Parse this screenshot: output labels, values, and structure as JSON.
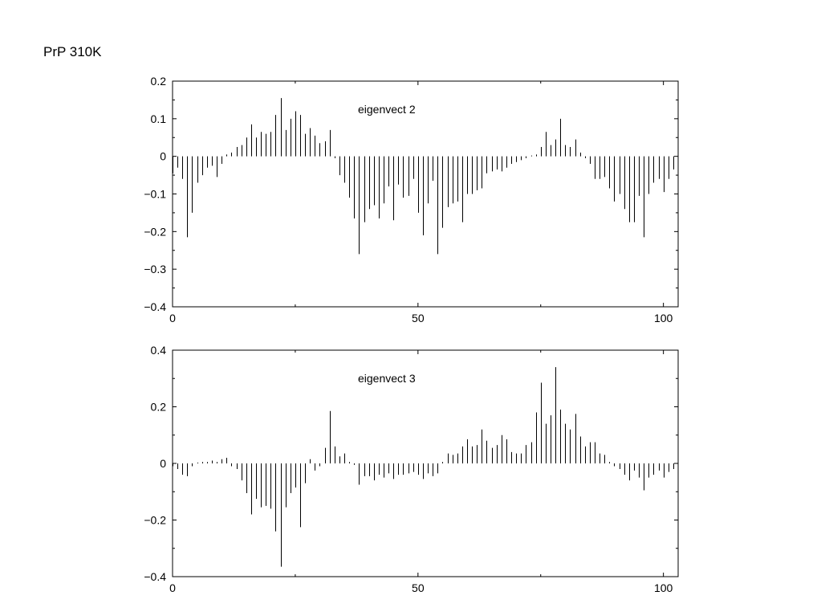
{
  "page": {
    "title": "PrP 310K"
  },
  "chart_data": [
    {
      "type": "bar",
      "style": "impulse",
      "series_label": "eigenvect 2",
      "xlim": [
        0,
        103
      ],
      "ylim": [
        -0.4,
        0.2
      ],
      "xticks": [
        0,
        50,
        100
      ],
      "yticks": [
        -0.4,
        -0.3,
        -0.2,
        -0.1,
        0,
        0.1,
        0.2
      ],
      "xtick_labels": [
        "0",
        "50",
        "100"
      ],
      "ytick_labels": [
        "−0.4",
        "−0.3",
        "−0.2",
        "−0.1",
        "0",
        "0.1",
        "0.2"
      ],
      "x": [
        0,
        1,
        2,
        3,
        4,
        5,
        6,
        7,
        8,
        9,
        10,
        11,
        12,
        13,
        14,
        15,
        16,
        17,
        18,
        19,
        20,
        21,
        22,
        23,
        24,
        25,
        26,
        27,
        28,
        29,
        30,
        31,
        32,
        33,
        34,
        35,
        36,
        37,
        38,
        39,
        40,
        41,
        42,
        43,
        44,
        45,
        46,
        47,
        48,
        49,
        50,
        51,
        52,
        53,
        54,
        55,
        56,
        57,
        58,
        59,
        60,
        61,
        62,
        63,
        64,
        65,
        66,
        67,
        68,
        69,
        70,
        71,
        72,
        73,
        74,
        75,
        76,
        77,
        78,
        79,
        80,
        81,
        82,
        83,
        84,
        85,
        86,
        87,
        88,
        89,
        90,
        91,
        92,
        93,
        94,
        95,
        96,
        97,
        98,
        99,
        100,
        101,
        102
      ],
      "values": [
        -0.045,
        -0.03,
        -0.06,
        -0.215,
        -0.15,
        -0.07,
        -0.05,
        -0.03,
        -0.025,
        -0.055,
        -0.02,
        0.005,
        0.01,
        0.025,
        0.03,
        0.05,
        0.085,
        0.05,
        0.065,
        0.06,
        0.065,
        0.11,
        0.155,
        0.07,
        0.1,
        0.12,
        0.11,
        0.06,
        0.075,
        0.055,
        0.035,
        0.04,
        0.07,
        -0.005,
        -0.05,
        -0.07,
        -0.11,
        -0.165,
        -0.26,
        -0.175,
        -0.14,
        -0.13,
        -0.165,
        -0.125,
        -0.08,
        -0.17,
        -0.075,
        -0.11,
        -0.105,
        -0.06,
        -0.15,
        -0.21,
        -0.125,
        -0.065,
        -0.26,
        -0.19,
        -0.135,
        -0.125,
        -0.12,
        -0.175,
        -0.1,
        -0.1,
        -0.09,
        -0.085,
        -0.045,
        -0.04,
        -0.035,
        -0.04,
        -0.03,
        -0.02,
        -0.015,
        -0.01,
        -0.005,
        0.0,
        0.005,
        0.025,
        0.065,
        0.03,
        0.045,
        0.1,
        0.03,
        0.025,
        0.045,
        0.01,
        -0.005,
        -0.02,
        -0.06,
        -0.06,
        -0.055,
        -0.085,
        -0.12,
        -0.1,
        -0.14,
        -0.175,
        -0.175,
        -0.105,
        -0.215,
        -0.1,
        -0.07,
        -0.06,
        -0.095,
        -0.06,
        -0.035
      ]
    },
    {
      "type": "bar",
      "style": "impulse",
      "series_label": "eigenvect 3",
      "xlim": [
        0,
        103
      ],
      "ylim": [
        -0.4,
        0.4
      ],
      "xticks": [
        0,
        50,
        100
      ],
      "yticks": [
        -0.4,
        -0.2,
        0,
        0.2,
        0.4
      ],
      "xtick_labels": [
        "0",
        "50",
        "100"
      ],
      "ytick_labels": [
        "−0.4",
        "−0.2",
        "0",
        "0.2",
        "0.4"
      ],
      "x": [
        0,
        1,
        2,
        3,
        4,
        5,
        6,
        7,
        8,
        9,
        10,
        11,
        12,
        13,
        14,
        15,
        16,
        17,
        18,
        19,
        20,
        21,
        22,
        23,
        24,
        25,
        26,
        27,
        28,
        29,
        30,
        31,
        32,
        33,
        34,
        35,
        36,
        37,
        38,
        39,
        40,
        41,
        42,
        43,
        44,
        45,
        46,
        47,
        48,
        49,
        50,
        51,
        52,
        53,
        54,
        55,
        56,
        57,
        58,
        59,
        60,
        61,
        62,
        63,
        64,
        65,
        66,
        67,
        68,
        69,
        70,
        71,
        72,
        73,
        74,
        75,
        76,
        77,
        78,
        79,
        80,
        81,
        82,
        83,
        84,
        85,
        86,
        87,
        88,
        89,
        90,
        91,
        92,
        93,
        94,
        95,
        96,
        97,
        98,
        99,
        100,
        101,
        102
      ],
      "values": [
        -0.01,
        -0.02,
        -0.04,
        -0.045,
        -0.01,
        0.0,
        0.005,
        0.005,
        0.01,
        0.005,
        0.015,
        0.02,
        -0.01,
        -0.02,
        -0.06,
        -0.105,
        -0.18,
        -0.125,
        -0.155,
        -0.15,
        -0.16,
        -0.24,
        -0.365,
        -0.155,
        -0.105,
        -0.085,
        -0.225,
        -0.07,
        0.015,
        -0.025,
        -0.01,
        0.055,
        0.185,
        0.06,
        0.025,
        0.035,
        0.005,
        -0.005,
        -0.075,
        -0.045,
        -0.045,
        -0.06,
        -0.04,
        -0.05,
        -0.035,
        -0.055,
        -0.04,
        -0.04,
        -0.035,
        -0.03,
        -0.04,
        -0.055,
        -0.035,
        -0.045,
        -0.035,
        0.005,
        0.035,
        0.03,
        0.035,
        0.06,
        0.085,
        0.06,
        0.065,
        0.12,
        0.08,
        0.055,
        0.065,
        0.1,
        0.085,
        0.04,
        0.035,
        0.035,
        0.065,
        0.075,
        0.18,
        0.285,
        0.14,
        0.17,
        0.34,
        0.19,
        0.14,
        0.12,
        0.175,
        0.095,
        0.06,
        0.075,
        0.075,
        0.035,
        0.03,
        0.005,
        -0.01,
        -0.02,
        -0.04,
        -0.06,
        -0.025,
        -0.05,
        -0.095,
        -0.05,
        -0.04,
        -0.025,
        -0.05,
        -0.03,
        -0.02
      ]
    }
  ]
}
